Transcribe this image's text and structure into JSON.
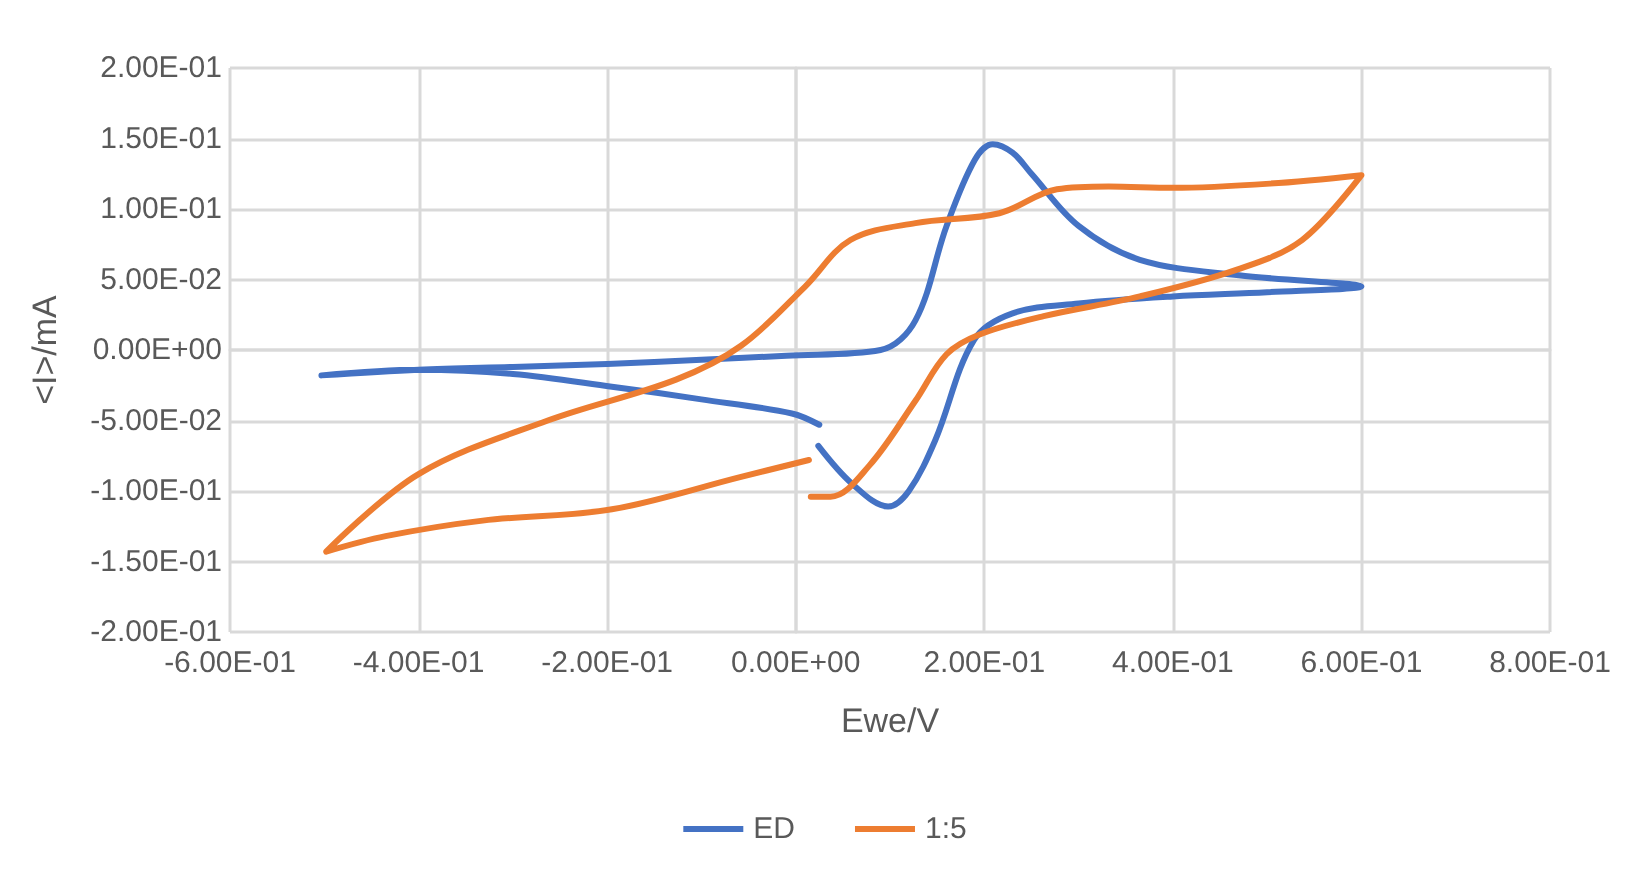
{
  "chart_data": {
    "type": "line",
    "xlabel": "Ewe/V",
    "ylabel": "<I>/mA",
    "series": [
      {
        "name": "ED",
        "color": "#4472c4",
        "x": [
          0.025,
          -0.004,
          -0.1,
          -0.195,
          -0.3,
          -0.4,
          -0.503,
          -0.4,
          -0.3,
          -0.2,
          -0.1,
          -0.01,
          0.09,
          0.127,
          0.16,
          0.19,
          0.209,
          0.23,
          0.25,
          0.3,
          0.365,
          0.47,
          0.6,
          0.5,
          0.4,
          0.3,
          0.23,
          0.189,
          0.148,
          0.12,
          0.098,
          0.06,
          0.024
        ],
        "values": [
          -0.053,
          -0.045,
          -0.035,
          -0.026,
          -0.017,
          -0.014,
          -0.018,
          -0.014,
          -0.012,
          -0.01,
          -0.007,
          -0.004,
          0,
          0.021,
          0.088,
          0.135,
          0.146,
          0.14,
          0.125,
          0.088,
          0.064,
          0.053,
          0.045,
          0.041,
          0.038,
          0.033,
          0.026,
          0.007,
          -0.064,
          -0.1,
          -0.111,
          -0.095,
          -0.068
        ]
      },
      {
        "name": "1:5",
        "color": "#ed7d31",
        "x": [
          0.014,
          -0.058,
          -0.195,
          -0.332,
          -0.435,
          -0.498,
          -0.4,
          -0.263,
          -0.127,
          -0.058,
          0.01,
          0.058,
          0.127,
          0.216,
          0.277,
          0.332,
          0.4,
          0.503,
          0.6,
          0.537,
          0.468,
          0.365,
          0.263,
          0.195,
          0.16,
          0.127,
          0.078,
          0.037,
          0.016
        ],
        "values": [
          -0.078,
          -0.09,
          -0.113,
          -0.121,
          -0.132,
          -0.143,
          -0.088,
          -0.05,
          -0.021,
          0.003,
          0.045,
          0.078,
          0.09,
          0.097,
          0.114,
          0.116,
          0.115,
          0.118,
          0.124,
          0.078,
          0.057,
          0.038,
          0.024,
          0.011,
          -0.003,
          -0.036,
          -0.082,
          -0.104,
          -0.104
        ]
      }
    ],
    "xlim": [
      -0.6,
      0.8
    ],
    "xticks": [
      {
        "value": -0.6,
        "label": "-6.00E-01"
      },
      {
        "value": -0.4,
        "label": "-4.00E-01"
      },
      {
        "value": -0.2,
        "label": "-2.00E-01"
      },
      {
        "value": 0,
        "label": "0.00E+00"
      },
      {
        "value": 0.2,
        "label": "2.00E-01"
      },
      {
        "value": 0.4,
        "label": "4.00E-01"
      },
      {
        "value": 0.6,
        "label": "6.00E-01"
      },
      {
        "value": 0.8,
        "label": "8.00E-01"
      }
    ],
    "ylim": [
      -0.2,
      0.2
    ],
    "yticks": [
      {
        "value": -0.2,
        "label": "-2.00E-01"
      },
      {
        "value": -0.15,
        "label": "-1.50E-01"
      },
      {
        "value": -0.1,
        "label": "-1.00E-01"
      },
      {
        "value": -0.05,
        "label": "-5.00E-02"
      },
      {
        "value": 0,
        "label": "0.00E+00"
      },
      {
        "value": 0.05,
        "label": "5.00E-02"
      },
      {
        "value": 0.1,
        "label": "1.00E-01"
      },
      {
        "value": 0.15,
        "label": "1.50E-01"
      },
      {
        "value": 0.2,
        "label": "2.00E-01"
      }
    ],
    "grid": true,
    "legend": "bottom"
  }
}
